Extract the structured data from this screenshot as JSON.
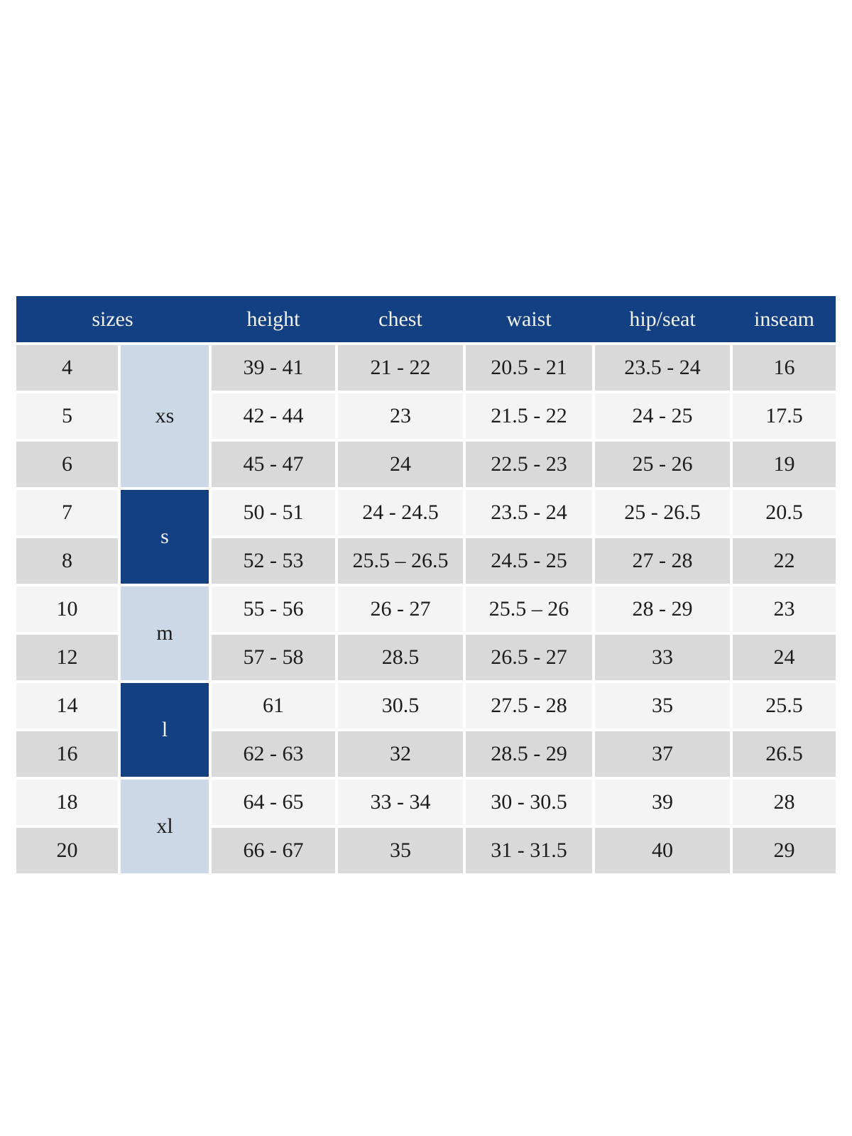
{
  "colors": {
    "page_bg": "#ffffff",
    "header_bg": "#134082",
    "header_text": "#f2f2f2",
    "group_dark_bg": "#134082",
    "group_dark_text": "#f2f2f2",
    "group_light_bg": "#ccd8e6",
    "row_gray": "#d9d9d9",
    "row_light": "#f4f4f4",
    "cell_text": "#1c1c1c"
  },
  "chart_data": {
    "type": "table",
    "layout": {
      "grid": "off",
      "row_striping": [
        "gray",
        "light"
      ],
      "group_column_tones": "alternating light/dark blue"
    },
    "header": [
      "sizes",
      "height",
      "chest",
      "waist",
      "hip/seat",
      "inseam"
    ],
    "groups": [
      {
        "label": "xs",
        "tone": "light",
        "row_span": 3
      },
      {
        "label": "s",
        "tone": "dark",
        "row_span": 2
      },
      {
        "label": "m",
        "tone": "light",
        "row_span": 2
      },
      {
        "label": "l",
        "tone": "dark",
        "row_span": 2
      },
      {
        "label": "xl",
        "tone": "light",
        "row_span": 2
      }
    ],
    "rows": [
      {
        "size": "4",
        "height": "39 - 41",
        "chest": "21 - 22",
        "waist": "20.5 - 21",
        "hip_seat": "23.5 - 24",
        "inseam": "16"
      },
      {
        "size": "5",
        "height": "42 - 44",
        "chest": "23",
        "waist": "21.5 - 22",
        "hip_seat": "24 - 25",
        "inseam": "17.5"
      },
      {
        "size": "6",
        "height": "45 - 47",
        "chest": "24",
        "waist": "22.5 - 23",
        "hip_seat": "25 - 26",
        "inseam": "19"
      },
      {
        "size": "7",
        "height": "50 - 51",
        "chest": "24 - 24.5",
        "waist": "23.5 - 24",
        "hip_seat": "25 - 26.5",
        "inseam": "20.5"
      },
      {
        "size": "8",
        "height": "52 - 53",
        "chest": "25.5 – 26.5",
        "waist": "24.5 - 25",
        "hip_seat": "27 - 28",
        "inseam": "22"
      },
      {
        "size": "10",
        "height": "55 - 56",
        "chest": "26 - 27",
        "waist": "25.5 – 26",
        "hip_seat": "28 - 29",
        "inseam": "23"
      },
      {
        "size": "12",
        "height": "57 - 58",
        "chest": "28.5",
        "waist": "26.5 - 27",
        "hip_seat": "33",
        "inseam": "24"
      },
      {
        "size": "14",
        "height": "61",
        "chest": "30.5",
        "waist": "27.5 - 28",
        "hip_seat": "35",
        "inseam": "25.5"
      },
      {
        "size": "16",
        "height": "62 - 63",
        "chest": "32",
        "waist": "28.5 - 29",
        "hip_seat": "37",
        "inseam": "26.5"
      },
      {
        "size": "18",
        "height": "64 - 65",
        "chest": "33 - 34",
        "waist": "30 - 30.5",
        "hip_seat": "39",
        "inseam": "28"
      },
      {
        "size": "20",
        "height": "66 - 67",
        "chest": "35",
        "waist": "31 - 31.5",
        "hip_seat": "40",
        "inseam": "29"
      }
    ]
  }
}
